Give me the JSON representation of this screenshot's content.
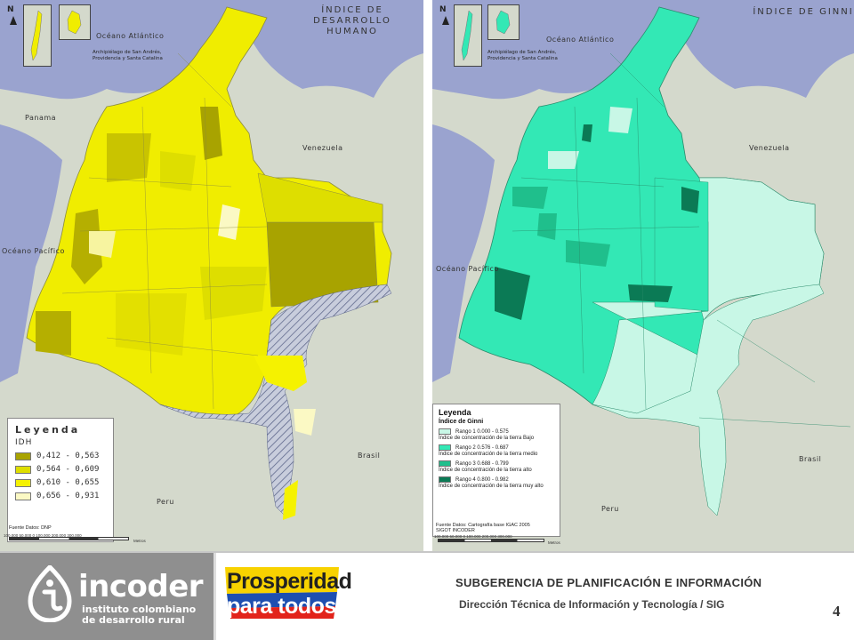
{
  "left_map": {
    "title_line1": "ÍNDICE DE DESARROLLO",
    "title_line2": "HUMANO",
    "north": "N",
    "archipelago_note": [
      "Archipiélago de San Andrés,",
      "Providencia y Santa Catalina"
    ],
    "labels": {
      "atlantic": "Océano Atlántico",
      "panama": "Panama",
      "venezuela": "Venezuela",
      "pacific": "Océano Pacífico",
      "brasil": "Brasil",
      "peru": "Peru"
    },
    "legend": {
      "title": "Leyenda",
      "subtitle": "IDH",
      "items": [
        {
          "label": "0,412 - 0,563",
          "color": "#a8a300"
        },
        {
          "label": "0,564 - 0,609",
          "color": "#dede00"
        },
        {
          "label": "0,610 - 0,655",
          "color": "#f5f200"
        },
        {
          "label": "0,656 - 0,931",
          "color": "#fbf9c4"
        }
      ]
    },
    "source": "Fuente Datos: DNP",
    "scale_labels": "100.000  50.000     0       100.000     200.000     300.000",
    "scale_unit": "Metros"
  },
  "right_map": {
    "title": "ÍNDICE DE GINNI",
    "north": "N",
    "archipelago_note": [
      "Archipiélago de San Andrés,",
      "Providencia y Santa Catalina"
    ],
    "labels": {
      "atlantic": "Océano Atlántico",
      "venezuela": "Venezuela",
      "pacific": "Océano Pacífico",
      "brasil": "Brasil",
      "peru": "Peru"
    },
    "legend": {
      "title": "Leyenda",
      "subtitle": "Índice de Ginni",
      "items": [
        {
          "label": "Rango 1   0.000 - 0.575",
          "desc": "Índice de concentración de la tierra Bajo",
          "color": "#c8f7e6"
        },
        {
          "label": "Rango 2   0.576 - 0.687",
          "desc": "Índice de concentración de la tierra medio",
          "color": "#33e8b5"
        },
        {
          "label": "Rango 3   0.688 - 0.799",
          "desc": "Índice de concentración de la tierra alto",
          "color": "#1fbf8c"
        },
        {
          "label": "Rango 4   0.800 - 0.982",
          "desc": "Índice de concentración de la tierra muy alto",
          "color": "#0b7a55"
        }
      ]
    },
    "source_lines": [
      "Fuente Datos: Cartografía base IGAC 2005",
      "SIGOT INCODER"
    ],
    "scale_labels": "100.000  50.000     0       100.000     200.000     300.000",
    "scale_unit": "Metros"
  },
  "footer": {
    "incoder_name": "incoder",
    "incoder_sub1": "instituto colombiano",
    "incoder_sub2": "de desarrollo rural",
    "prosperidad_line1": "Prosperidad",
    "prosperidad_line2": "para todos",
    "subgerencia": "SUBGERENCIA DE PLANIFICACIÓN E INFORMACIÓN",
    "direccion": "Dirección Técnica de Información y Tecnología / SIG",
    "page_number": "4"
  }
}
